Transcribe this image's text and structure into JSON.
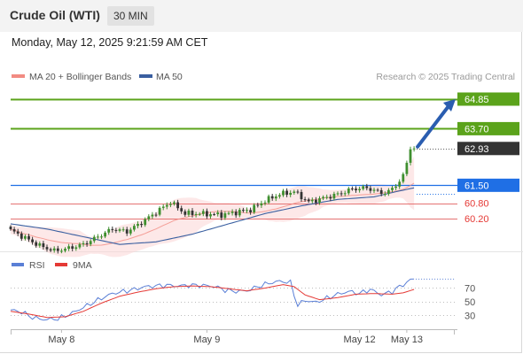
{
  "header": {
    "instrument": "Crude Oil (WTI)",
    "timeframe": "30 MIN",
    "datetime": "Monday, May 12, 2025 9:21:59 AM CET"
  },
  "colors": {
    "resistance": "#5ba31b",
    "pivot": "#1f6fe5",
    "support": "#e57373",
    "last": "#333333",
    "ma20": "#f28b82",
    "ma50": "#3a5fa0",
    "band": "#fbd5d5",
    "rsi": "#5a7fd6",
    "rsi_ma": "#e53935",
    "arrow": "#2a5db0",
    "candle_up": "#3f8f2f",
    "candle_down": "#333333"
  },
  "chart_data": [
    {
      "type": "candlestick",
      "legend": [
        "MA 20 + Bollinger Bands",
        "MA 50"
      ],
      "watermark": "Research © 2025 Trading Central",
      "ylim": [
        59.0,
        65.4
      ],
      "levels": [
        {
          "value": 64.85,
          "label": "64.85",
          "kind": "resistance"
        },
        {
          "value": 63.7,
          "label": "63.70",
          "kind": "resistance"
        },
        {
          "value": 62.93,
          "label": "62.93",
          "kind": "last"
        },
        {
          "value": 61.5,
          "label": "61.50",
          "kind": "pivot"
        },
        {
          "value": 60.8,
          "label": "60.80",
          "kind": "support"
        },
        {
          "value": 60.2,
          "label": "60.20",
          "kind": "support"
        }
      ],
      "x_labels": [
        {
          "label": "May 8",
          "index": 14
        },
        {
          "label": "May 9",
          "index": 54
        },
        {
          "label": "May 12",
          "index": 96
        },
        {
          "label": "May 13",
          "index": 109
        }
      ],
      "anchors": [
        [
          0,
          59.75
        ],
        [
          4,
          59.45
        ],
        [
          8,
          59.15
        ],
        [
          12,
          58.95
        ],
        [
          16,
          59.05
        ],
        [
          20,
          59.2
        ],
        [
          24,
          59.5
        ],
        [
          28,
          59.8
        ],
        [
          32,
          59.7
        ],
        [
          36,
          60.05
        ],
        [
          40,
          60.45
        ],
        [
          44,
          60.85
        ],
        [
          48,
          60.4
        ],
        [
          52,
          60.4
        ],
        [
          58,
          60.35
        ],
        [
          62,
          60.45
        ],
        [
          66,
          60.55
        ],
        [
          70,
          60.9
        ],
        [
          74,
          61.15
        ],
        [
          78,
          61.25
        ],
        [
          82,
          60.85
        ],
        [
          86,
          61.0
        ],
        [
          90,
          61.15
        ],
        [
          94,
          61.35
        ],
        [
          98,
          61.4
        ],
        [
          102,
          61.2
        ],
        [
          104,
          61.25
        ],
        [
          106,
          61.5
        ],
        [
          108,
          61.85
        ],
        [
          110,
          62.9
        ],
        [
          111,
          62.93
        ]
      ],
      "ma50_anchors": [
        [
          0,
          60.0
        ],
        [
          10,
          59.8
        ],
        [
          20,
          59.5
        ],
        [
          30,
          59.2
        ],
        [
          40,
          59.3
        ],
        [
          50,
          59.6
        ],
        [
          60,
          60.0
        ],
        [
          70,
          60.4
        ],
        [
          80,
          60.7
        ],
        [
          90,
          60.95
        ],
        [
          100,
          61.05
        ],
        [
          106,
          61.25
        ],
        [
          111,
          61.4
        ]
      ]
    },
    {
      "type": "line",
      "legend": [
        "RSI",
        "9MA"
      ],
      "y_ticks": [
        70,
        50,
        30
      ],
      "ylim": [
        15,
        90
      ],
      "series": [
        {
          "name": "RSI",
          "anchors": [
            [
              0,
              38
            ],
            [
              3,
              35
            ],
            [
              6,
              27
            ],
            [
              9,
              24
            ],
            [
              13,
              25
            ],
            [
              16,
              31
            ],
            [
              19,
              39
            ],
            [
              22,
              47
            ],
            [
              25,
              55
            ],
            [
              28,
              62
            ],
            [
              31,
              65
            ],
            [
              34,
              68
            ],
            [
              37,
              72
            ],
            [
              40,
              73
            ],
            [
              43,
              74
            ],
            [
              46,
              73
            ],
            [
              49,
              74
            ],
            [
              52,
              74
            ],
            [
              55,
              73
            ],
            [
              57,
              71
            ],
            [
              59,
              67
            ],
            [
              62,
              65
            ],
            [
              65,
              66
            ],
            [
              68,
              72
            ],
            [
              71,
              77
            ],
            [
              74,
              80
            ],
            [
              77,
              78
            ],
            [
              78,
              60
            ],
            [
              79,
              45
            ],
            [
              81,
              52
            ],
            [
              84,
              49
            ],
            [
              87,
              55
            ],
            [
              90,
              61
            ],
            [
              93,
              65
            ],
            [
              96,
              62
            ],
            [
              99,
              68
            ],
            [
              102,
              60
            ],
            [
              105,
              65
            ],
            [
              107,
              72
            ],
            [
              109,
              78
            ],
            [
              110,
              82
            ],
            [
              111,
              83
            ]
          ]
        },
        {
          "name": "9MA",
          "anchors": [
            [
              0,
              36
            ],
            [
              5,
              32
            ],
            [
              10,
              27
            ],
            [
              15,
              28
            ],
            [
              20,
              36
            ],
            [
              25,
              48
            ],
            [
              30,
              58
            ],
            [
              35,
              64
            ],
            [
              40,
              69
            ],
            [
              45,
              72
            ],
            [
              50,
              73
            ],
            [
              55,
              72
            ],
            [
              60,
              69
            ],
            [
              65,
              66
            ],
            [
              70,
              70
            ],
            [
              75,
              75
            ],
            [
              78,
              72
            ],
            [
              81,
              60
            ],
            [
              85,
              53
            ],
            [
              90,
              56
            ],
            [
              95,
              61
            ],
            [
              100,
              62
            ],
            [
              105,
              61
            ],
            [
              108,
              63
            ],
            [
              111,
              68
            ]
          ]
        }
      ]
    }
  ]
}
